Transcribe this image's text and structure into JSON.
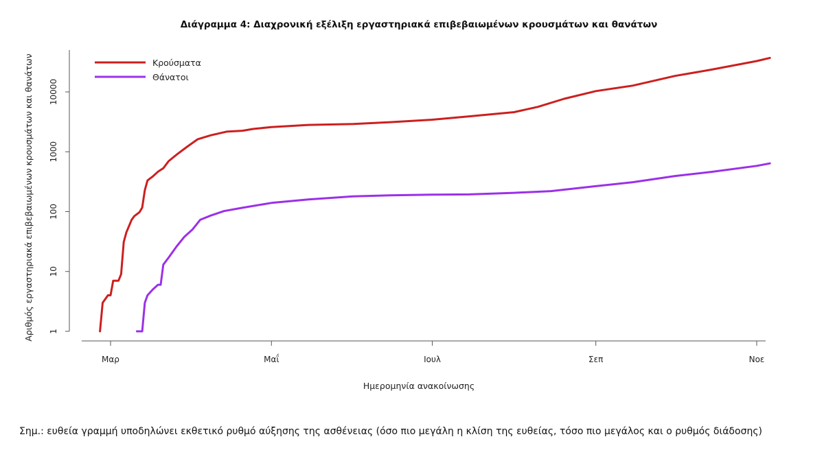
{
  "chart_data": {
    "type": "line",
    "title": "Διάγραμμα 4: Διαχρονική εξέλιξη εργαστηριακά επιβεβαιωμένων κρουσμάτων και θανάτων",
    "xlabel": "Ημερομηνία ανακοίνωσης",
    "ylabel": "Αριθμός εργαστηριακά επιβεβαιωμένων κρουσμάτων και θανάτων",
    "y_scale": "log",
    "ylim": [
      1,
      50000
    ],
    "x_range": [
      "2020-02-20",
      "2020-11-16"
    ],
    "x_ticks": [
      {
        "date": "2020-03-01",
        "label": "Μαρ"
      },
      {
        "date": "2020-05-01",
        "label": "Μαΐ"
      },
      {
        "date": "2020-07-01",
        "label": "Ιουλ"
      },
      {
        "date": "2020-09-01",
        "label": "Σεπ"
      },
      {
        "date": "2020-11-01",
        "label": "Νοε"
      }
    ],
    "y_ticks": [
      {
        "value": 1,
        "label": "1"
      },
      {
        "value": 10,
        "label": "10"
      },
      {
        "value": 100,
        "label": "100"
      },
      {
        "value": 1000,
        "label": "1000"
      },
      {
        "value": 10000,
        "label": "10000"
      }
    ],
    "grid": false,
    "legend_position": "top-left",
    "series": [
      {
        "name": "Κρούσματα",
        "color": "#cc1f1f",
        "points": [
          [
            "2020-02-26",
            1
          ],
          [
            "2020-02-27",
            3
          ],
          [
            "2020-02-29",
            4
          ],
          [
            "2020-03-01",
            4
          ],
          [
            "2020-03-02",
            7
          ],
          [
            "2020-03-04",
            7
          ],
          [
            "2020-03-05",
            9
          ],
          [
            "2020-03-06",
            31
          ],
          [
            "2020-03-07",
            45
          ],
          [
            "2020-03-09",
            73
          ],
          [
            "2020-03-10",
            84
          ],
          [
            "2020-03-12",
            98
          ],
          [
            "2020-03-13",
            117
          ],
          [
            "2020-03-14",
            228
          ],
          [
            "2020-03-15",
            331
          ],
          [
            "2020-03-17",
            387
          ],
          [
            "2020-03-19",
            464
          ],
          [
            "2020-03-21",
            530
          ],
          [
            "2020-03-23",
            695
          ],
          [
            "2020-03-26",
            892
          ],
          [
            "2020-03-30",
            1212
          ],
          [
            "2020-04-03",
            1613
          ],
          [
            "2020-04-08",
            1884
          ],
          [
            "2020-04-14",
            2170
          ],
          [
            "2020-04-20",
            2245
          ],
          [
            "2020-04-24",
            2408
          ],
          [
            "2020-05-01",
            2591
          ],
          [
            "2020-05-15",
            2810
          ],
          [
            "2020-06-01",
            2917
          ],
          [
            "2020-06-15",
            3121
          ],
          [
            "2020-07-01",
            3432
          ],
          [
            "2020-07-15",
            3910
          ],
          [
            "2020-08-01",
            4587
          ],
          [
            "2020-08-10",
            5623
          ],
          [
            "2020-08-20",
            7684
          ],
          [
            "2020-09-01",
            10317
          ],
          [
            "2020-09-15",
            12734
          ],
          [
            "2020-10-01",
            18475
          ],
          [
            "2020-10-15",
            23612
          ],
          [
            "2020-11-01",
            32752
          ],
          [
            "2020-11-06",
            37000
          ]
        ]
      },
      {
        "name": "Θάνατοι",
        "color": "#9b30e8",
        "points": [
          [
            "2020-03-11",
            1
          ],
          [
            "2020-03-13",
            1
          ],
          [
            "2020-03-14",
            3
          ],
          [
            "2020-03-15",
            4
          ],
          [
            "2020-03-17",
            5
          ],
          [
            "2020-03-19",
            6
          ],
          [
            "2020-03-20",
            6
          ],
          [
            "2020-03-21",
            13
          ],
          [
            "2020-03-23",
            17
          ],
          [
            "2020-03-26",
            26
          ],
          [
            "2020-03-29",
            38
          ],
          [
            "2020-04-01",
            50
          ],
          [
            "2020-04-04",
            73
          ],
          [
            "2020-04-08",
            86
          ],
          [
            "2020-04-13",
            102
          ],
          [
            "2020-04-20",
            116
          ],
          [
            "2020-05-01",
            140
          ],
          [
            "2020-05-15",
            160
          ],
          [
            "2020-06-01",
            180
          ],
          [
            "2020-06-15",
            187
          ],
          [
            "2020-07-01",
            192
          ],
          [
            "2020-07-15",
            194
          ],
          [
            "2020-08-01",
            206
          ],
          [
            "2020-08-15",
            220
          ],
          [
            "2020-09-01",
            266
          ],
          [
            "2020-09-15",
            310
          ],
          [
            "2020-10-01",
            393
          ],
          [
            "2020-10-15",
            462
          ],
          [
            "2020-11-01",
            581
          ],
          [
            "2020-11-06",
            640
          ]
        ]
      }
    ]
  },
  "note": "Σημ.: ευθεία γραμμή υποδηλώνει εκθετικό ρυθμό αύξησης της ασθένειας (όσο πιο μεγάλη η κλίση της ευθείας, τόσο πιο μεγάλος και ο ρυθμός διάδοσης)"
}
